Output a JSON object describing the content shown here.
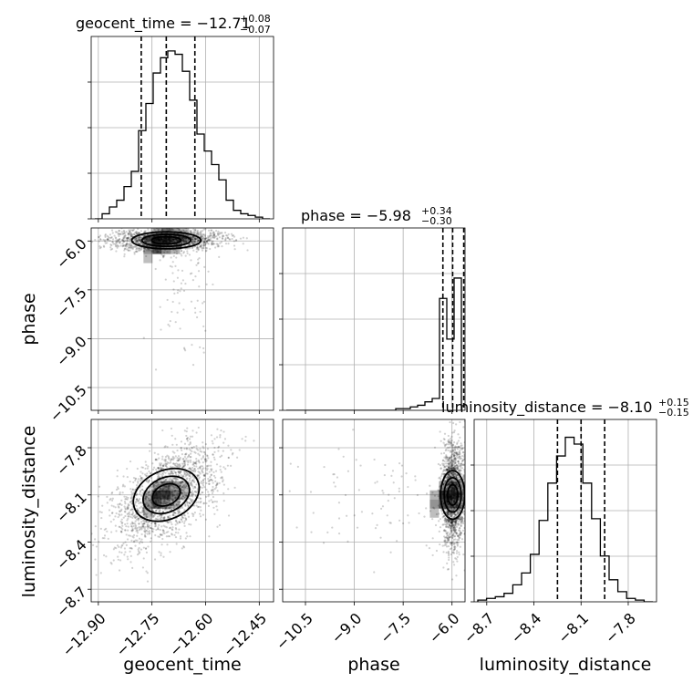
{
  "chart_data": {
    "type": "scatter",
    "subtype": "corner-plot",
    "parameters": [
      {
        "key": "geocent_time",
        "label": "geocent_time",
        "median": "−12.71",
        "plus": "+0.08",
        "minus": "−0.07",
        "quantiles": [
          -12.78,
          -12.71,
          -12.63
        ],
        "range": [
          -12.92,
          -12.41
        ],
        "ticks": [
          -12.9,
          -12.75,
          -12.6,
          -12.45
        ],
        "tick_labels": [
          "−12.90",
          "−12.75",
          "−12.60",
          "−12.45"
        ],
        "hist": [
          0.0,
          0.03,
          0.07,
          0.11,
          0.19,
          0.28,
          0.52,
          0.68,
          0.86,
          0.95,
          0.99,
          0.97,
          0.87,
          0.7,
          0.5,
          0.4,
          0.32,
          0.23,
          0.11,
          0.05,
          0.03,
          0.02,
          0.01,
          0.0
        ]
      },
      {
        "key": "phase",
        "label": "phase",
        "median": "−5.98",
        "plus": "+0.34",
        "minus": "−0.30",
        "quantiles": [
          -6.28,
          -5.98,
          -5.64
        ],
        "range": [
          -11.2,
          -5.6
        ],
        "ticks": [
          -10.5,
          -9.0,
          -7.5,
          -6.0
        ],
        "tick_labels": [
          "−10.5",
          "−9.0",
          "−7.5",
          "−6.0"
        ],
        "hist": [
          0,
          0,
          0,
          0,
          0,
          0,
          0,
          0,
          0,
          0,
          0,
          0,
          0,
          0,
          0,
          0.01,
          0.01,
          0.02,
          0.03,
          0.05,
          0.07,
          0.66,
          0.42,
          0.78
        ]
      },
      {
        "key": "luminosity_distance",
        "label": "luminosity_distance",
        "median": "−8.10",
        "plus": "+0.15",
        "minus": "−0.15",
        "quantiles": [
          -8.25,
          -8.1,
          -7.95
        ],
        "range": [
          -8.78,
          -7.62
        ],
        "ticks": [
          -8.7,
          -8.4,
          -8.1,
          -7.8
        ],
        "tick_labels": [
          "−8.7",
          "−8.4",
          "−8.1",
          "−7.8"
        ],
        "hist": [
          0.01,
          0.02,
          0.03,
          0.05,
          0.1,
          0.17,
          0.28,
          0.48,
          0.7,
          0.86,
          0.97,
          0.93,
          0.7,
          0.49,
          0.27,
          0.13,
          0.06,
          0.02,
          0.01,
          0.0
        ]
      }
    ],
    "correlations": {
      "geocent_time__luminosity_distance": 0.55,
      "geocent_time__phase": 0.0,
      "phase__luminosity_distance": 0.0
    },
    "grid": true
  }
}
